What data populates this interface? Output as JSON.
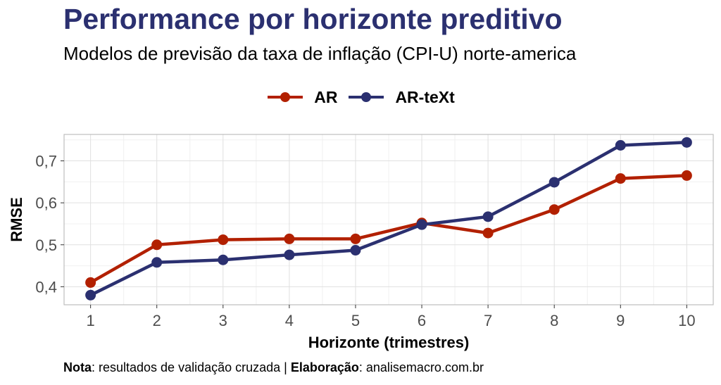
{
  "title": "Performance por horizonte preditivo",
  "subtitle": "Modelos de previsão da taxa de inflação (CPI-U) norte-america",
  "note": {
    "label1": "Nota",
    "text1": ": resultados de validação cruzada | ",
    "label2": "Elaboração",
    "text2": ": analisemacro.com.br"
  },
  "chart_data": {
    "type": "line",
    "x": [
      1,
      2,
      3,
      4,
      5,
      6,
      7,
      8,
      9,
      10
    ],
    "series": [
      {
        "name": "AR",
        "color": "#b22000",
        "values": [
          0.41,
          0.5,
          0.512,
          0.514,
          0.514,
          0.552,
          0.528,
          0.584,
          0.658,
          0.665
        ]
      },
      {
        "name": "AR-teXt",
        "color": "#2b3070",
        "values": [
          0.38,
          0.458,
          0.464,
          0.476,
          0.487,
          0.548,
          0.567,
          0.649,
          0.737,
          0.744
        ]
      }
    ],
    "xlabel": "Horizonte (trimestres)",
    "ylabel": "RMSE",
    "xticks": [
      "1",
      "2",
      "3",
      "4",
      "5",
      "6",
      "7",
      "8",
      "9",
      "10"
    ],
    "yticks": [
      {
        "value": 0.4,
        "label": "0,4"
      },
      {
        "value": 0.5,
        "label": "0,5"
      },
      {
        "value": 0.6,
        "label": "0,6"
      },
      {
        "value": 0.7,
        "label": "0,7"
      }
    ],
    "xlim": [
      0.6,
      10.4
    ],
    "ylim": [
      0.357,
      0.763
    ],
    "grid": true,
    "legend_position": "top"
  }
}
